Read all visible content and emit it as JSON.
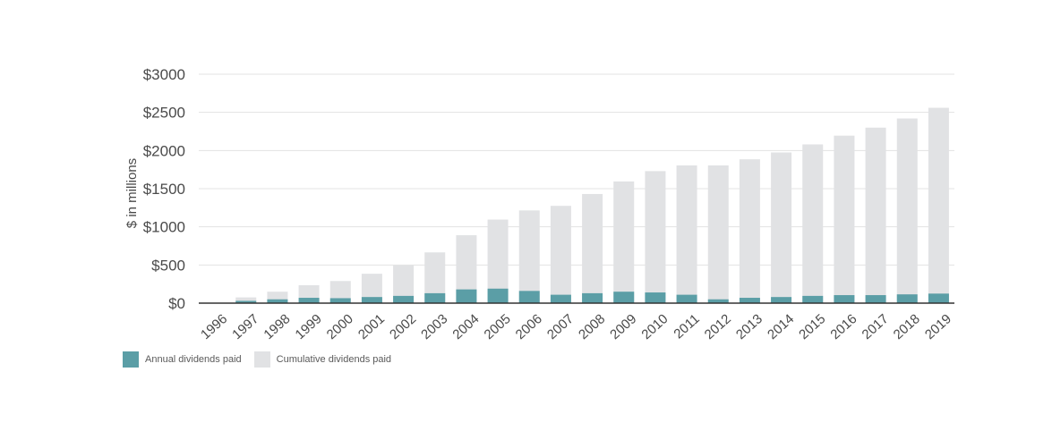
{
  "chart_data": {
    "type": "bar",
    "stacking": "overlaid",
    "categories": [
      "1996",
      "1997",
      "1998",
      "1999",
      "2000",
      "2001",
      "2002",
      "2003",
      "2004",
      "2005",
      "2006",
      "2007",
      "2008",
      "2009",
      "2010",
      "2011",
      "2012",
      "2013",
      "2014",
      "2015",
      "2016",
      "2017",
      "2018",
      "2019"
    ],
    "series": [
      {
        "name": "Annual dividends paid",
        "color": "#5b9ea6",
        "values": [
          0,
          30,
          50,
          70,
          65,
          80,
          95,
          130,
          180,
          190,
          160,
          110,
          130,
          150,
          140,
          110,
          50,
          70,
          80,
          95,
          105,
          105,
          115,
          125
        ]
      },
      {
        "name": "Cumulative dividends paid",
        "color": "#e1e2e4",
        "values": [
          0,
          75,
          150,
          235,
          290,
          385,
          495,
          665,
          890,
          1095,
          1215,
          1275,
          1430,
          1595,
          1730,
          1805,
          1805,
          1885,
          1975,
          2080,
          2195,
          2300,
          2420,
          2560
        ]
      }
    ],
    "ylabel": "$ in millions",
    "ylim": [
      0,
      3000
    ],
    "yticks": [
      0,
      500,
      1000,
      1500,
      2000,
      2500,
      3000
    ],
    "ytick_labels": [
      "$0",
      "$500",
      "$1000",
      "$1500",
      "$2000",
      "$2500",
      "$3000"
    ],
    "grid": true,
    "legend_position": "bottom-left"
  },
  "legend": {
    "annual_label": "Annual dividends paid",
    "cumulative_label": "Cumulative dividends paid"
  }
}
